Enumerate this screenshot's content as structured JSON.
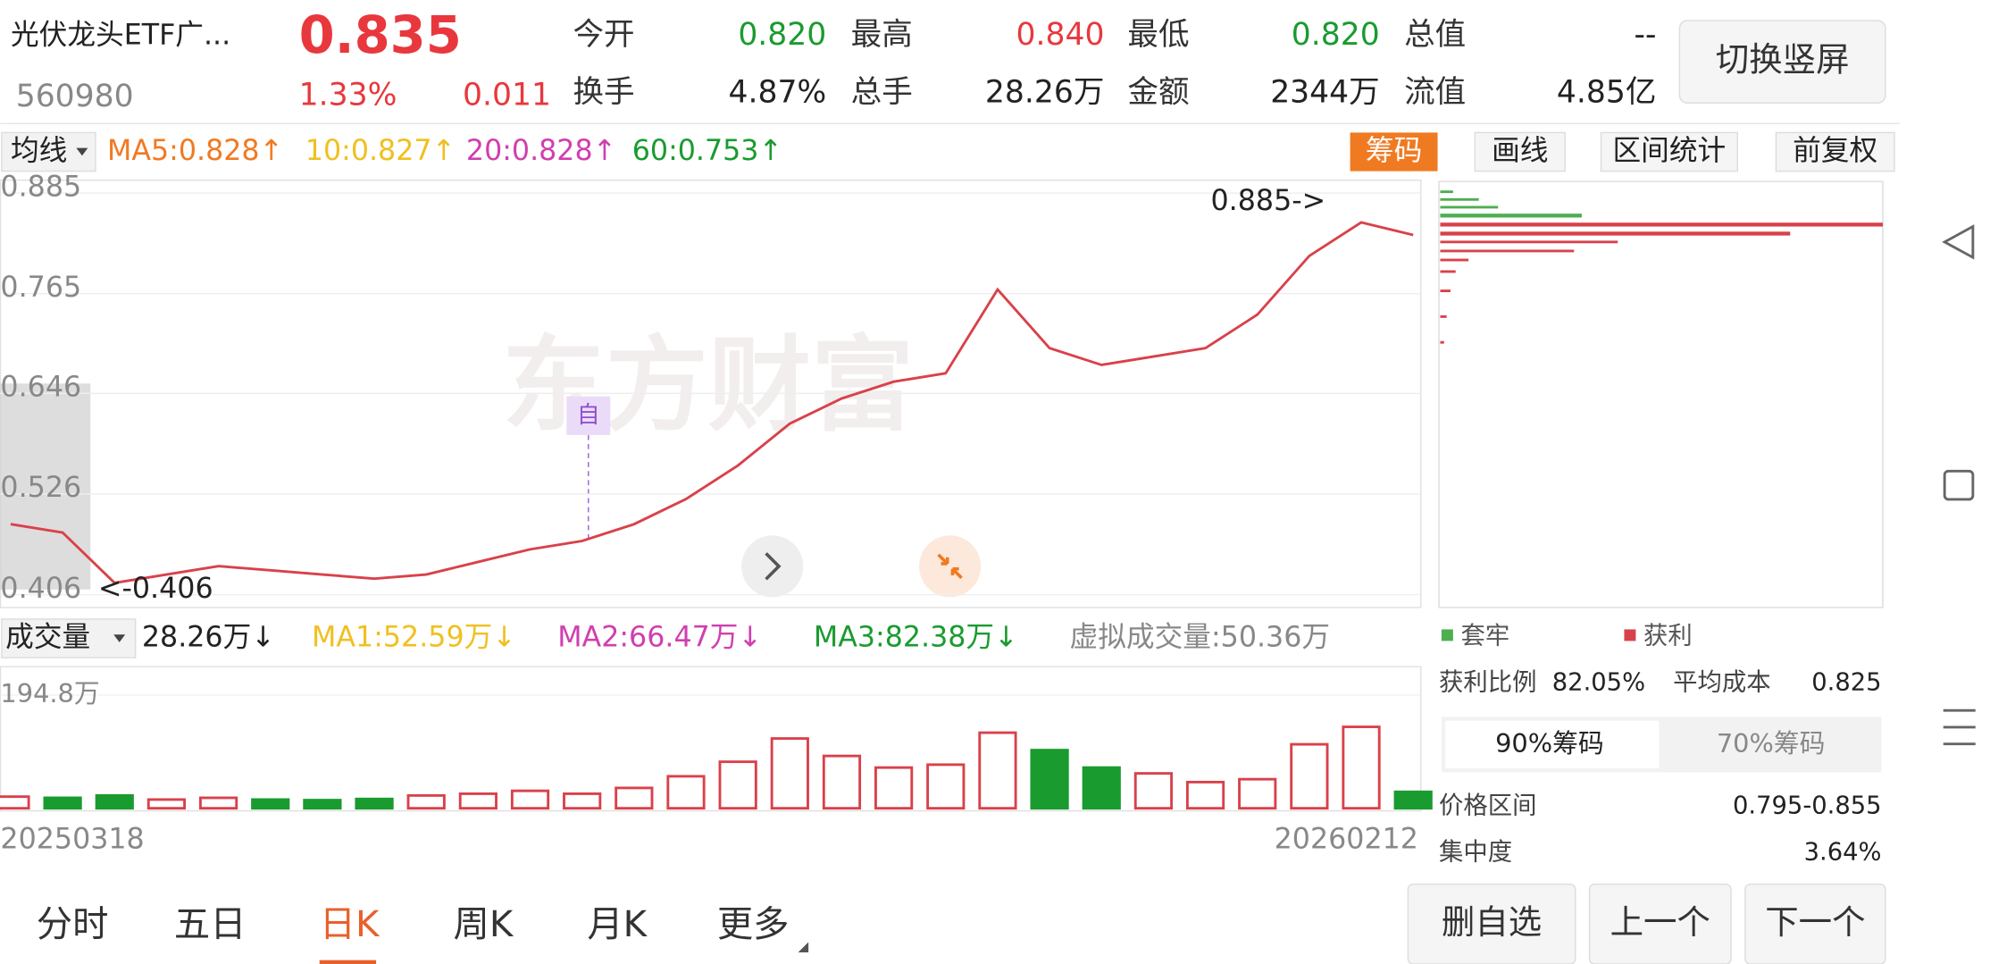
{
  "header": {
    "name": "光伏龙头ETF广...",
    "price": "0.835",
    "code": "560980",
    "change_pct": "1.33%",
    "change": "0.011",
    "stats": [
      [
        "今开",
        "0.820"
      ],
      [
        "最高",
        "0.840"
      ],
      [
        "最低",
        "0.820"
      ],
      [
        "总值",
        "--"
      ],
      [
        "换手",
        "4.87%"
      ],
      [
        "总手",
        "28.26万"
      ],
      [
        "金额",
        "2344万"
      ],
      [
        "流值",
        "4.85亿"
      ]
    ],
    "button": "切换竖屏"
  },
  "toolbar": {
    "ma_select": "均线",
    "ma": [
      "MA5:0.828↑",
      "10:0.827↑",
      "20:0.828↑",
      "60:0.753↑"
    ],
    "buttons": [
      "筹码",
      "画线",
      "区间统计",
      "前复权"
    ]
  },
  "chart_data": [
    {
      "type": "line",
      "categories": [
        "20250318",
        null,
        null,
        null,
        null,
        null,
        null,
        null,
        null,
        null,
        null,
        null,
        null,
        null,
        null,
        null,
        null,
        null,
        null,
        null,
        null,
        null,
        null,
        null,
        null,
        null,
        null,
        "20260212"
      ],
      "series": [
        {
          "color": "#d9414a",
          "values": [
            0.49,
            0.48,
            0.42,
            0.43,
            0.44,
            0.435,
            0.43,
            0.425,
            0.43,
            0.445,
            0.46,
            0.47,
            0.49,
            0.52,
            0.56,
            0.61,
            0.64,
            0.66,
            0.67,
            0.77,
            0.7,
            0.68,
            0.69,
            0.7,
            0.74,
            0.81,
            0.85,
            0.835
          ]
        }
      ],
      "ylim": [
        0.406,
        0.885
      ],
      "yticks": [
        0.885,
        0.765,
        0.646,
        0.526,
        0.406
      ],
      "grid": true,
      "annotations": [
        "0.885->",
        "<-0.406"
      ]
    },
    {
      "type": "bar",
      "series": [
        {
          "values": [
            20,
            18,
            22,
            15,
            18,
            15,
            14,
            16,
            22,
            25,
            30,
            25,
            35,
            55,
            80,
            120,
            90,
            70,
            75,
            130,
            100,
            70,
            60,
            45,
            50,
            110,
            140,
            28.26
          ]
        }
      ],
      "ylim": [
        0,
        194.8
      ],
      "yticks": [
        {
          "value": 194.8,
          "label": "194.8万"
        }
      ]
    }
  ],
  "volume_bar": {
    "select": "成交量",
    "items": [
      "28.26万↓",
      "MA1:52.59万↓",
      "MA2:66.47万↓",
      "MA3:82.38万↓",
      "虚拟成交量:50.36万"
    ]
  },
  "chips": {
    "legend": [
      "套牢",
      "获利"
    ],
    "profit_label": "获利比例",
    "profit": "82.05%",
    "cost_label": "平均成本",
    "cost": "0.825",
    "tabs": [
      "90%筹码",
      "70%筹码"
    ],
    "range_label": "价格区间",
    "range": "0.795-0.855",
    "conc_label": "集中度",
    "conc": "3.64%"
  },
  "tabs": [
    "分时",
    "五日",
    "日K",
    "周K",
    "月K",
    "更多"
  ],
  "actions": [
    "删自选",
    "上一个",
    "下一个"
  ]
}
